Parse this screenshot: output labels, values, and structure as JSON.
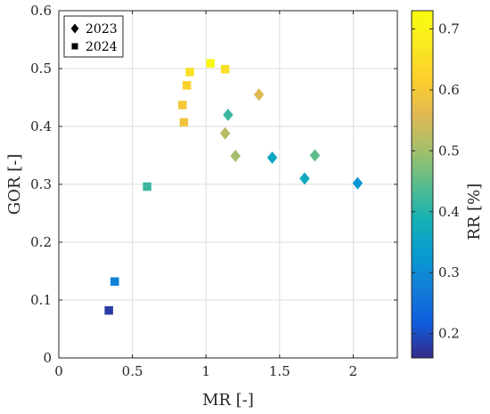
{
  "chart_data": {
    "type": "scatter",
    "title": "",
    "xlabel": "MR [-]",
    "ylabel": "GOR [-]",
    "colorbar_label": "RR [%]",
    "xlim": [
      0,
      2.3
    ],
    "ylim": [
      0,
      0.6
    ],
    "color_lim": [
      0.16,
      0.73
    ],
    "grid": true,
    "legend_position": "top-left",
    "x_ticks": [
      0,
      0.5,
      1,
      1.5,
      2
    ],
    "x_tick_labels": [
      "0",
      "0.5",
      "1",
      "1.5",
      "2"
    ],
    "y_ticks": [
      0,
      0.1,
      0.2,
      0.3,
      0.4,
      0.5,
      0.6
    ],
    "y_tick_labels": [
      "0",
      "0.1",
      "0.2",
      "0.3",
      "0.4",
      "0.5",
      "0.6"
    ],
    "colorbar_ticks": [
      0.2,
      0.3,
      0.4,
      0.5,
      0.6,
      0.7
    ],
    "colorbar_tick_labels": [
      "0.2",
      "0.3",
      "0.4",
      "0.5",
      "0.6",
      "0.7"
    ],
    "series": [
      {
        "name": "2023",
        "marker": "diamond",
        "points": [
          {
            "x": 1.15,
            "y": 0.42,
            "c": 0.42
          },
          {
            "x": 1.13,
            "y": 0.388,
            "c": 0.52
          },
          {
            "x": 1.2,
            "y": 0.349,
            "c": 0.5
          },
          {
            "x": 1.36,
            "y": 0.455,
            "c": 0.56
          },
          {
            "x": 1.45,
            "y": 0.346,
            "c": 0.36
          },
          {
            "x": 1.67,
            "y": 0.31,
            "c": 0.37
          },
          {
            "x": 1.74,
            "y": 0.35,
            "c": 0.45
          },
          {
            "x": 2.03,
            "y": 0.302,
            "c": 0.32
          }
        ]
      },
      {
        "name": "2024",
        "marker": "square",
        "points": [
          {
            "x": 0.34,
            "y": 0.082,
            "c": 0.18
          },
          {
            "x": 0.38,
            "y": 0.132,
            "c": 0.28
          },
          {
            "x": 0.6,
            "y": 0.296,
            "c": 0.42
          },
          {
            "x": 0.84,
            "y": 0.437,
            "c": 0.6
          },
          {
            "x": 0.85,
            "y": 0.407,
            "c": 0.59
          },
          {
            "x": 0.87,
            "y": 0.471,
            "c": 0.62
          },
          {
            "x": 0.89,
            "y": 0.494,
            "c": 0.65
          },
          {
            "x": 1.03,
            "y": 0.509,
            "c": 0.72
          },
          {
            "x": 1.13,
            "y": 0.499,
            "c": 0.65
          }
        ]
      }
    ]
  }
}
